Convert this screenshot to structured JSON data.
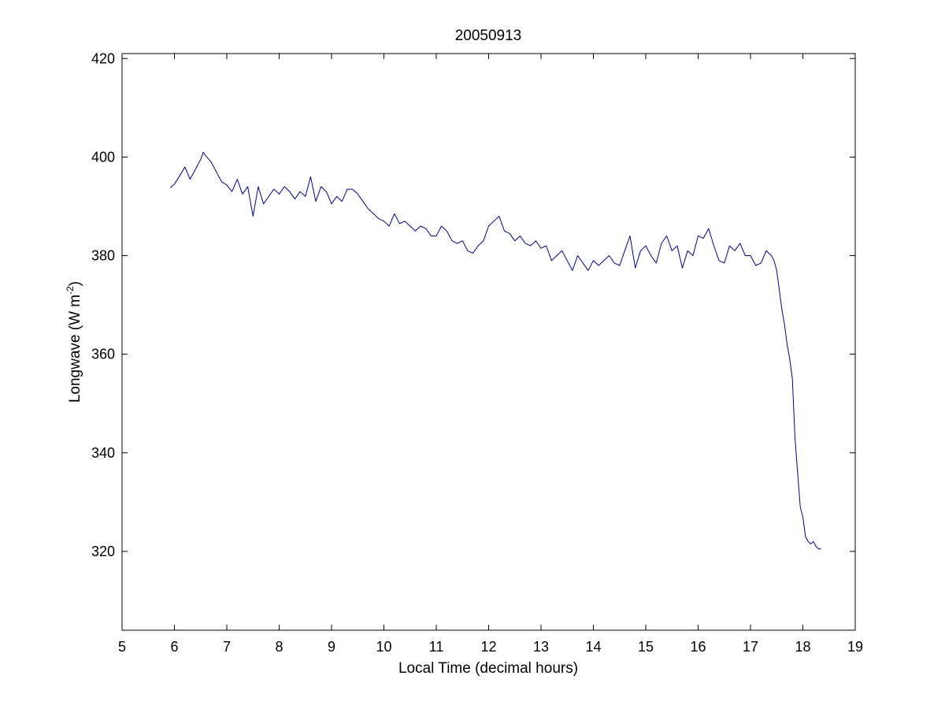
{
  "chart_data": {
    "type": "line",
    "title": "20050913",
    "xlabel": "Local Time (decimal hours)",
    "ylabel": {
      "prefix": "Longwave (W m",
      "superscript": "-2",
      "suffix": ")"
    },
    "xlim": [
      5,
      19
    ],
    "ylim": [
      304,
      421
    ],
    "xticks": [
      "5",
      "6",
      "7",
      "8",
      "9",
      "10",
      "11",
      "12",
      "13",
      "14",
      "15",
      "16",
      "17",
      "18",
      "19"
    ],
    "yticks": [
      "320",
      "340",
      "360",
      "380",
      "400",
      "420"
    ],
    "grid": false,
    "line_color": "#00008b",
    "series": [
      {
        "x": [
          5.92,
          6.0,
          6.1,
          6.2,
          6.3,
          6.4,
          6.5,
          6.55,
          6.6,
          6.7,
          6.8,
          6.9,
          7.0,
          7.1,
          7.2,
          7.3,
          7.4,
          7.5,
          7.6,
          7.7,
          7.8,
          7.9,
          8.0,
          8.1,
          8.2,
          8.3,
          8.4,
          8.5,
          8.6,
          8.7,
          8.8,
          8.9,
          9.0,
          9.1,
          9.2,
          9.3,
          9.4,
          9.5,
          9.6,
          9.7,
          9.8,
          9.9,
          10.0,
          10.1,
          10.2,
          10.3,
          10.4,
          10.5,
          10.6,
          10.7,
          10.8,
          10.9,
          11.0,
          11.1,
          11.2,
          11.3,
          11.4,
          11.5,
          11.6,
          11.7,
          11.8,
          11.9,
          12.0,
          12.1,
          12.2,
          12.3,
          12.4,
          12.5,
          12.6,
          12.7,
          12.8,
          12.9,
          13.0,
          13.1,
          13.2,
          13.3,
          13.4,
          13.5,
          13.6,
          13.7,
          13.8,
          13.9,
          14.0,
          14.1,
          14.2,
          14.3,
          14.4,
          14.5,
          14.6,
          14.7,
          14.8,
          14.9,
          15.0,
          15.1,
          15.2,
          15.3,
          15.4,
          15.5,
          15.6,
          15.7,
          15.8,
          15.9,
          16.0,
          16.1,
          16.2,
          16.3,
          16.4,
          16.5,
          16.6,
          16.7,
          16.8,
          16.9,
          17.0,
          17.1,
          17.2,
          17.3,
          17.4,
          17.45,
          17.5,
          17.55,
          17.6,
          17.65,
          17.7,
          17.75,
          17.8,
          17.85,
          17.9,
          17.95,
          18.0,
          18.05,
          18.1,
          18.15,
          18.2,
          18.25,
          18.3,
          18.35
        ],
        "y": [
          393.8,
          394.5,
          396.2,
          398.0,
          395.5,
          397.5,
          399.5,
          401.0,
          400.2,
          399.0,
          397.0,
          395.0,
          394.3,
          393.0,
          395.5,
          392.5,
          394.0,
          388.0,
          394.0,
          390.5,
          392.0,
          393.5,
          392.5,
          394.0,
          393.0,
          391.5,
          393.0,
          392.0,
          396.0,
          391.0,
          394.0,
          393.0,
          390.5,
          392.0,
          391.0,
          393.5,
          393.5,
          392.5,
          391.0,
          389.5,
          388.5,
          387.5,
          387.0,
          386.0,
          388.5,
          386.5,
          387.0,
          386.0,
          385.0,
          386.0,
          385.5,
          384.0,
          384.0,
          386.0,
          385.0,
          383.0,
          382.5,
          383.0,
          381.0,
          380.5,
          382.0,
          383.0,
          386.0,
          387.0,
          388.0,
          385.0,
          384.5,
          383.0,
          384.0,
          382.5,
          382.0,
          383.0,
          381.5,
          382.0,
          379.0,
          380.0,
          381.0,
          379.0,
          377.0,
          380.0,
          378.5,
          377.0,
          379.0,
          378.0,
          379.0,
          380.0,
          378.5,
          378.0,
          381.0,
          384.0,
          377.5,
          381.0,
          382.0,
          380.0,
          378.5,
          382.5,
          384.0,
          381.0,
          382.0,
          377.5,
          381.0,
          380.0,
          384.0,
          383.5,
          385.5,
          382.0,
          379.0,
          378.5,
          382.0,
          381.0,
          382.5,
          380.0,
          380.0,
          378.0,
          378.5,
          381.0,
          380.0,
          379.0,
          377.0,
          373.0,
          369.0,
          366.0,
          362.0,
          359.0,
          355.0,
          343.0,
          336.0,
          329.0,
          327.0,
          323.0,
          322.0,
          321.5,
          322.0,
          321.0,
          320.5,
          320.5
        ]
      }
    ]
  }
}
